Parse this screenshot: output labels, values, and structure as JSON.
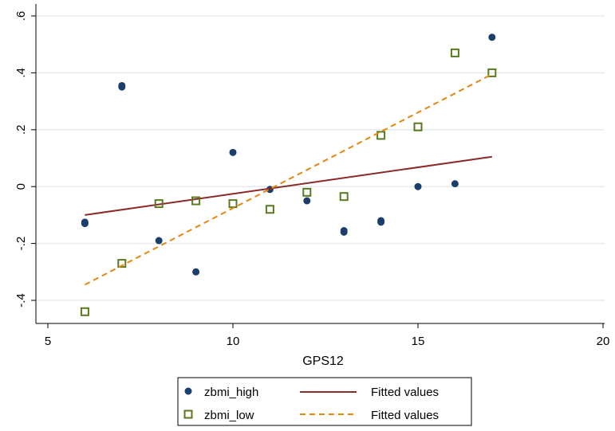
{
  "chart_data": {
    "type": "scatter",
    "xlabel": "GPS12",
    "ylabel": "",
    "xlim": [
      5,
      20
    ],
    "ylim": [
      -0.48,
      0.6
    ],
    "x_ticks": [
      5,
      10,
      15,
      20
    ],
    "x_tick_labels": [
      "5",
      "10",
      "15",
      "20"
    ],
    "y_ticks": [
      -0.4,
      -0.2,
      0,
      0.2,
      0.4,
      0.6
    ],
    "y_tick_labels": [
      "-.4",
      "-.2",
      "0",
      ".2",
      ".4",
      ".6"
    ],
    "grid": "horizontal",
    "legend_position": "bottom",
    "series": [
      {
        "name": "zbmi_high",
        "kind": "scatter",
        "marker": "circle-filled",
        "color": "#1b3f6b",
        "points": [
          [
            6,
            -0.125
          ],
          [
            6,
            -0.13
          ],
          [
            7,
            0.355
          ],
          [
            7,
            0.35
          ],
          [
            8,
            -0.19
          ],
          [
            9,
            -0.3
          ],
          [
            10,
            0.12
          ],
          [
            11,
            -0.01
          ],
          [
            12,
            -0.05
          ],
          [
            13,
            -0.155
          ],
          [
            13,
            -0.16
          ],
          [
            14,
            -0.12
          ],
          [
            14,
            -0.125
          ],
          [
            15,
            0.0
          ],
          [
            16,
            0.01
          ],
          [
            17,
            0.525
          ]
        ]
      },
      {
        "name": "Fitted values",
        "kind": "line",
        "style": "solid",
        "color": "#8b2a2a",
        "points": [
          [
            6,
            -0.1
          ],
          [
            17,
            0.105
          ]
        ]
      },
      {
        "name": "zbmi_low",
        "kind": "scatter",
        "marker": "square-hollow",
        "color": "#5a7a1e",
        "points": [
          [
            6,
            -0.44
          ],
          [
            7,
            -0.27
          ],
          [
            8,
            -0.06
          ],
          [
            9,
            -0.05
          ],
          [
            10,
            -0.06
          ],
          [
            11,
            -0.08
          ],
          [
            12,
            -0.02
          ],
          [
            13,
            -0.035
          ],
          [
            14,
            0.18
          ],
          [
            15,
            0.21
          ],
          [
            16,
            0.47
          ],
          [
            17,
            0.4
          ]
        ]
      },
      {
        "name": "Fitted values",
        "kind": "line",
        "style": "dashed",
        "color": "#e8850c",
        "points": [
          [
            6,
            -0.345
          ],
          [
            17,
            0.395
          ]
        ]
      }
    ]
  }
}
